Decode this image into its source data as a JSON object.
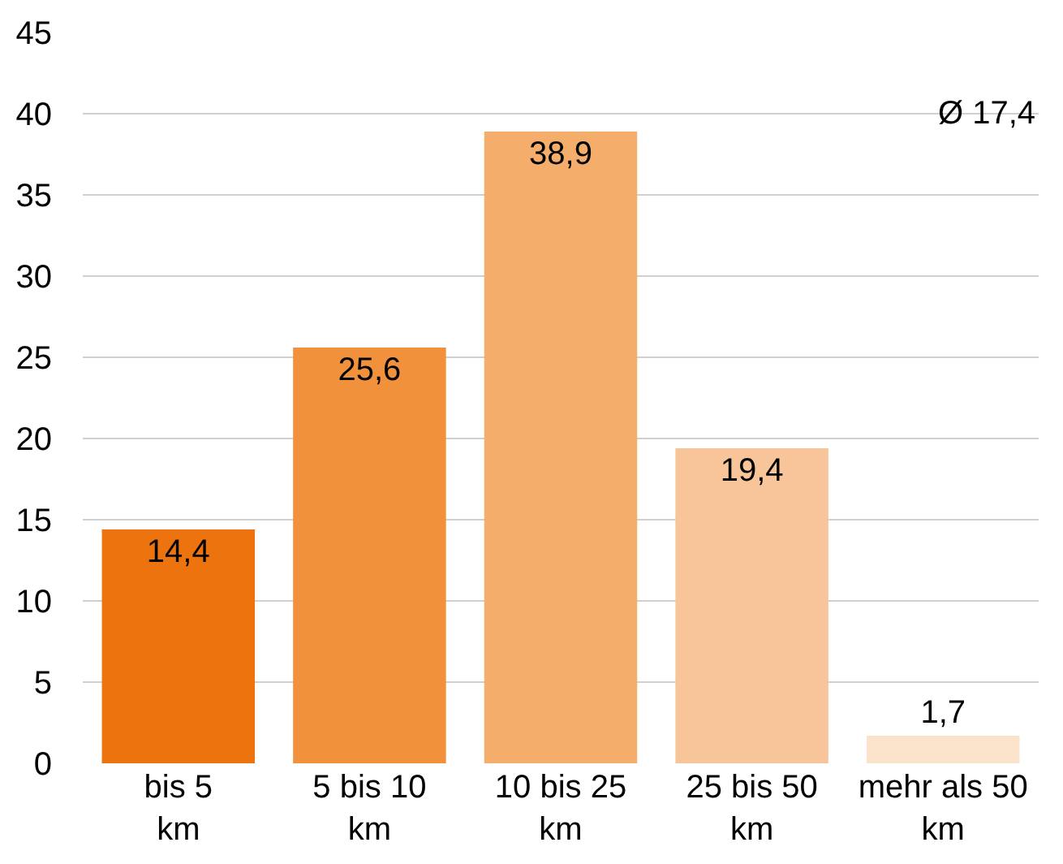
{
  "chart_data": {
    "type": "bar",
    "categories": [
      "bis 5 km",
      "5 bis 10 km",
      "10 bis 25 km",
      "25 bis 50 km",
      "mehr als 50 km"
    ],
    "values": [
      14.4,
      25.6,
      38.9,
      19.4,
      1.7
    ],
    "colors": [
      "#ed730e",
      "#f1913c",
      "#f4ad6b",
      "#f8c59a",
      "#fbe2cb"
    ],
    "value_labels": [
      "14,4",
      "25,6",
      "38,9",
      "19,4",
      "1,7"
    ],
    "ylim": [
      0,
      45
    ],
    "yticks": [
      0,
      5,
      10,
      15,
      20,
      25,
      30,
      35,
      40,
      45
    ],
    "grid": "y",
    "legend": false,
    "annotations": [
      "Ø 17,4"
    ]
  }
}
